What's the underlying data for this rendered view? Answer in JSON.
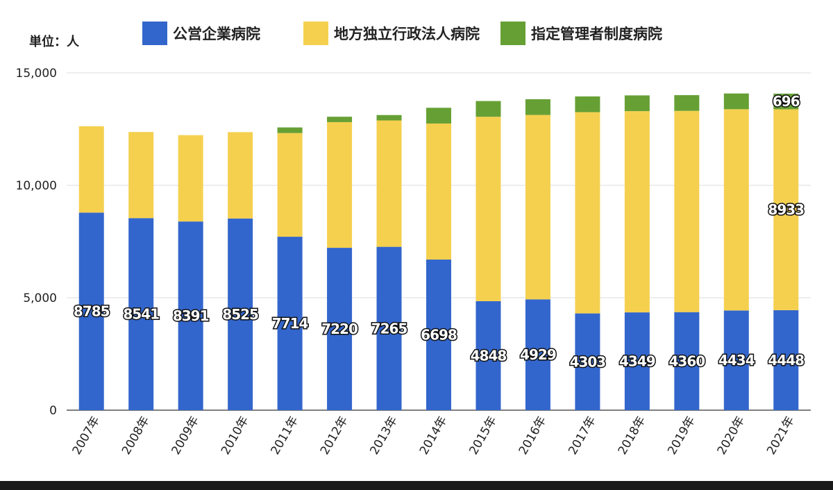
{
  "chart_data": {
    "type": "bar",
    "stacked": true,
    "unit_label": "単位：人",
    "categories": [
      "2007年",
      "2008年",
      "2009年",
      "2010年",
      "2011年",
      "2012年",
      "2013年",
      "2014年",
      "2015年",
      "2016年",
      "2017年",
      "2018年",
      "2019年",
      "2020年",
      "2021年"
    ],
    "series": [
      {
        "name": "公営企業病院",
        "color": "#3366cc",
        "values": [
          8785,
          8541,
          8391,
          8525,
          7714,
          7220,
          7265,
          6698,
          4848,
          4929,
          4303,
          4349,
          4360,
          4434,
          4448
        ]
      },
      {
        "name": "地方独立行政法人病院",
        "color": "#f5d04f",
        "values": [
          3840,
          3830,
          3840,
          3840,
          4610,
          5590,
          5620,
          6050,
          8200,
          8200,
          8950,
          8950,
          8950,
          8950,
          8933
        ]
      },
      {
        "name": "指定管理者制度病院",
        "color": "#66a035",
        "values": [
          0,
          0,
          0,
          0,
          250,
          240,
          240,
          700,
          700,
          700,
          700,
          700,
          700,
          700,
          696
        ]
      }
    ],
    "shown_labels": {
      "公営企業病院": [
        0,
        1,
        2,
        3,
        4,
        5,
        6,
        7,
        8,
        9,
        10,
        11,
        12,
        13,
        14
      ],
      "地方独立行政法人病院": [
        14
      ],
      "指定管理者制度病院": [
        14
      ]
    },
    "y_ticks": [
      0,
      5000,
      10000,
      15000
    ],
    "y_tick_labels": [
      "0",
      "5,000",
      "10,000",
      "15,000"
    ],
    "ylim": [
      0,
      15000
    ],
    "grid": true,
    "legend_position": "top"
  }
}
